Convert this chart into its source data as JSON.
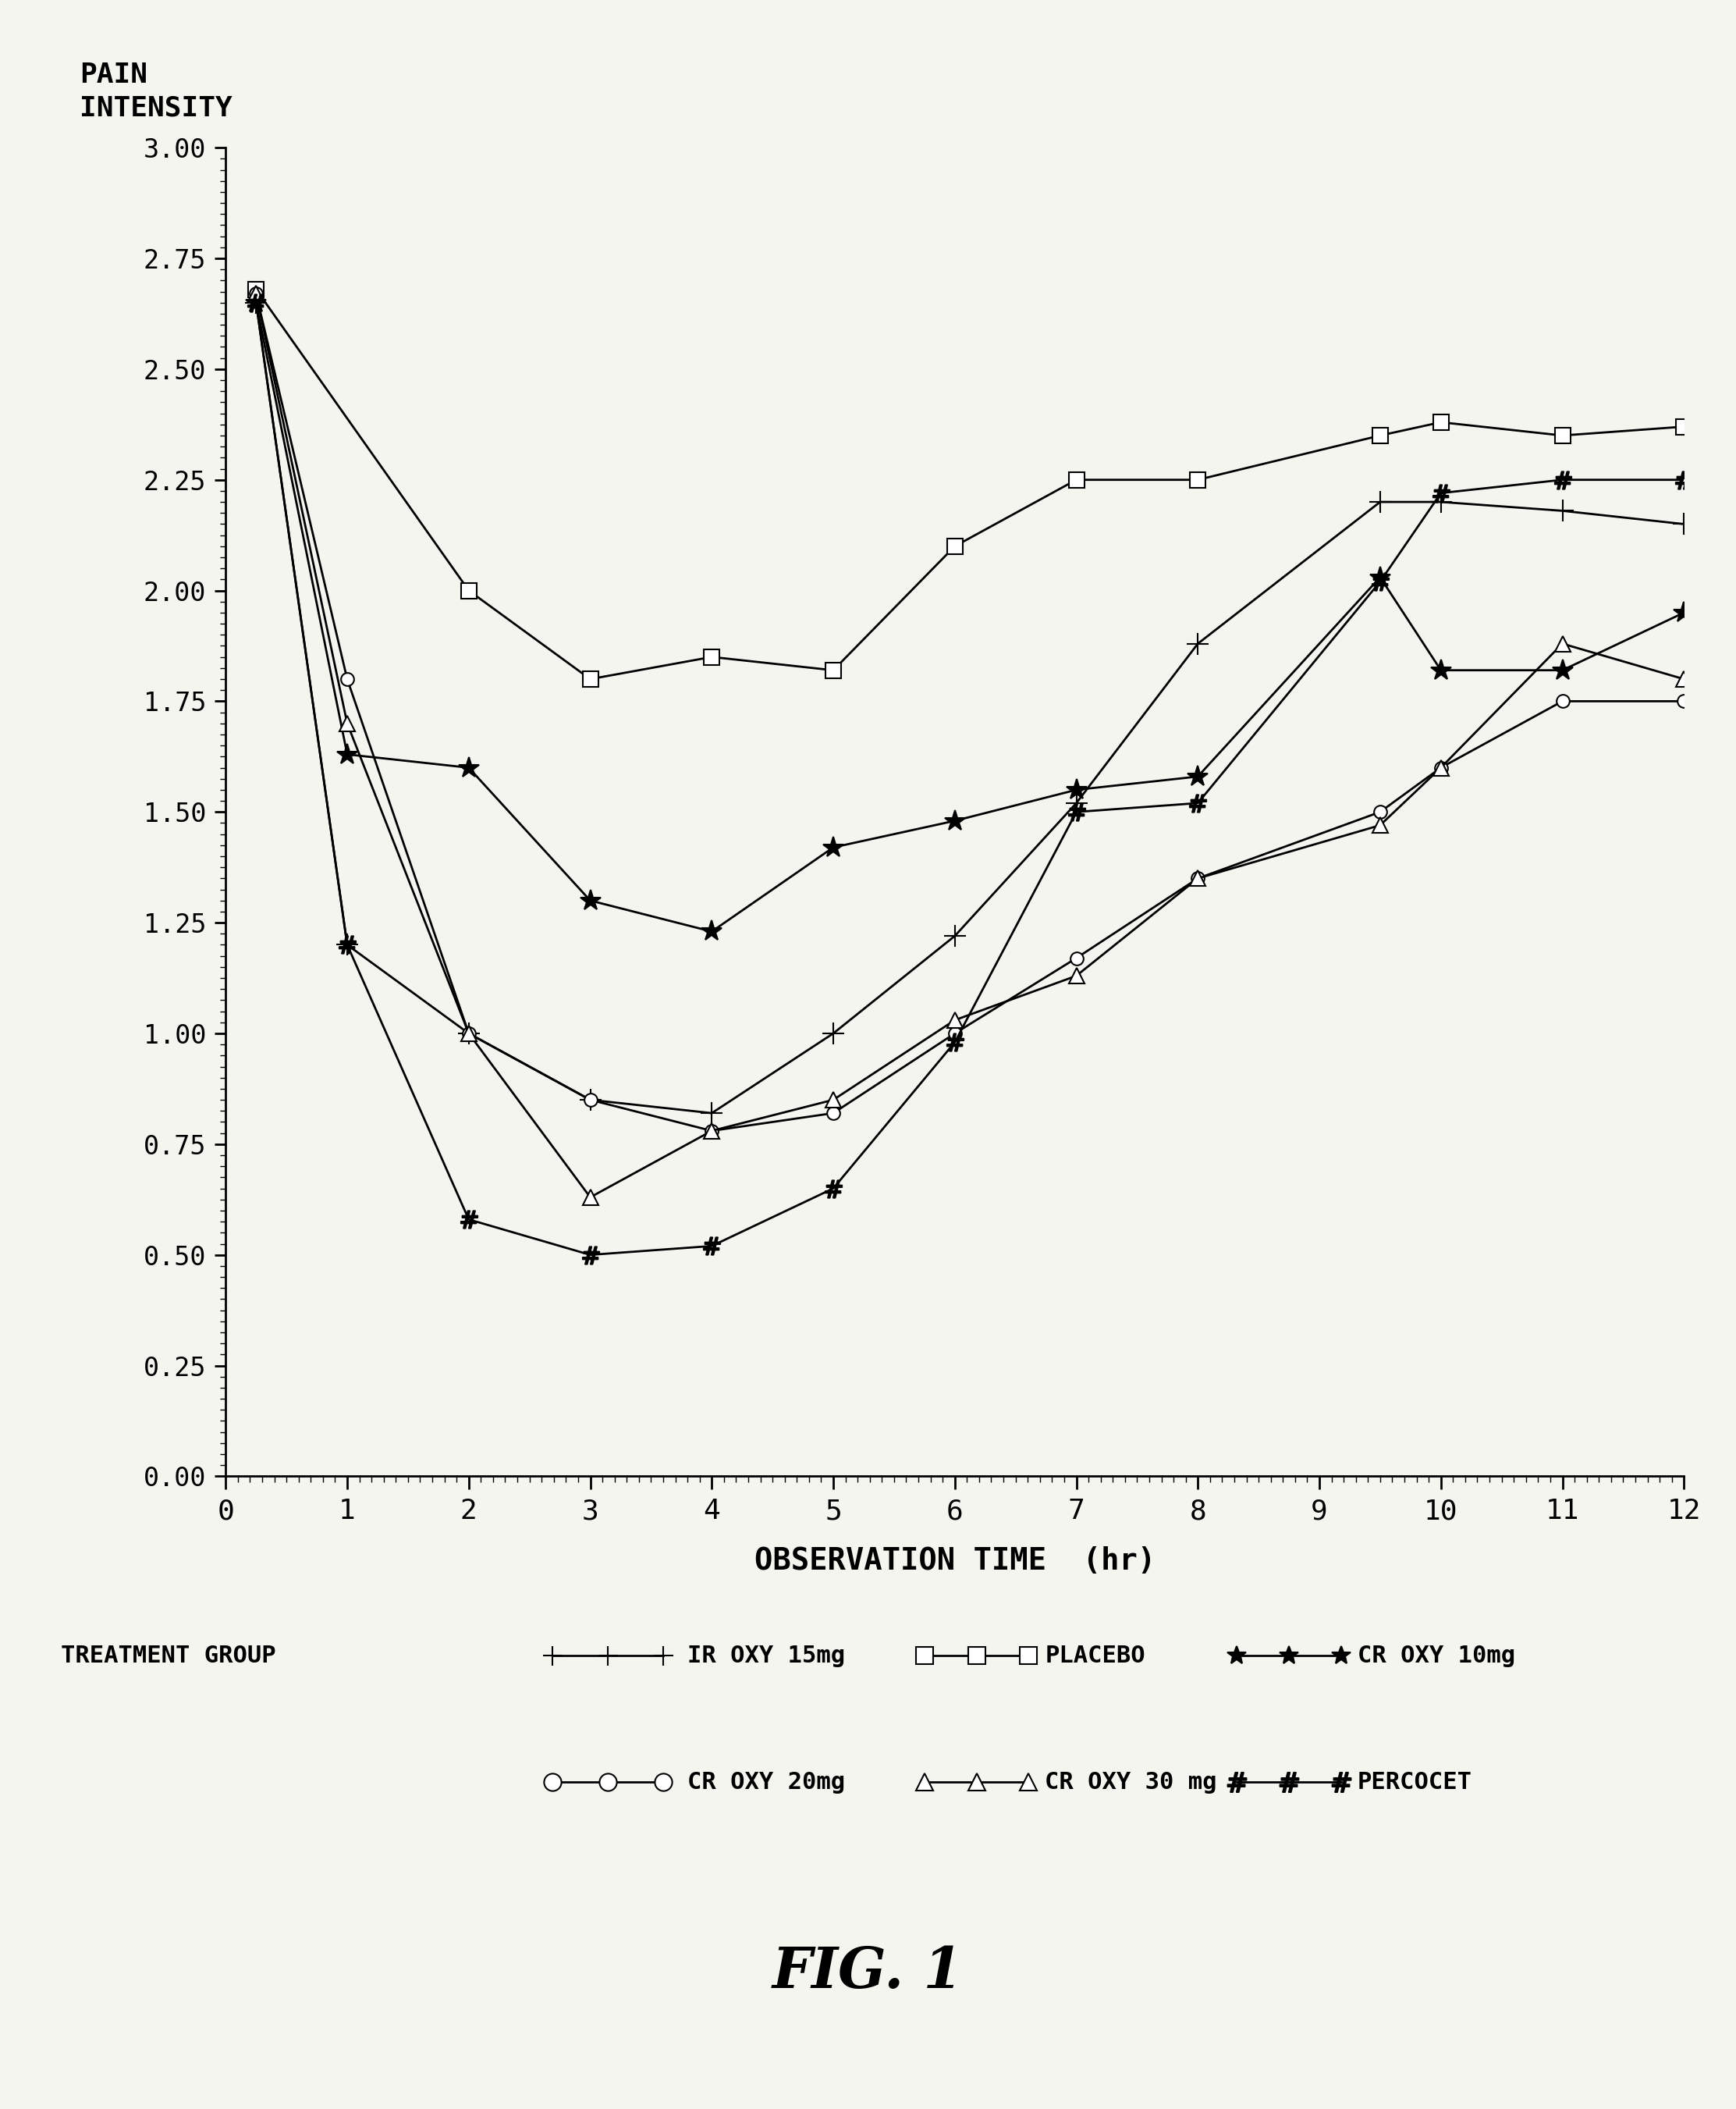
{
  "ylabel": "PAIN\nINTENSITY",
  "xlabel": "OBSERVATION TIME  (hr)",
  "fig_title": "FIG. 1",
  "legend_label": "TREATMENT GROUP",
  "ylim": [
    0.0,
    3.0
  ],
  "xlim": [
    0,
    12
  ],
  "yticks": [
    0.0,
    0.25,
    0.5,
    0.75,
    1.0,
    1.25,
    1.5,
    1.75,
    2.0,
    2.25,
    2.5,
    2.75,
    3.0
  ],
  "xticks": [
    0,
    1,
    2,
    3,
    4,
    5,
    6,
    7,
    8,
    9,
    10,
    11,
    12
  ],
  "series": [
    {
      "name": "IR OXY 15mg",
      "x": [
        0.25,
        1,
        2,
        3,
        4,
        5,
        6,
        7,
        8,
        9.5,
        10,
        11,
        12
      ],
      "y": [
        2.65,
        1.2,
        1.0,
        0.85,
        0.82,
        1.0,
        1.22,
        1.52,
        1.88,
        2.2,
        2.2,
        2.18,
        2.15
      ],
      "marker": "+",
      "mfc": "black",
      "ms": 20,
      "lw": 2.0
    },
    {
      "name": "PLACEBO",
      "x": [
        0.25,
        2,
        3,
        4,
        5,
        6,
        7,
        8,
        9.5,
        10,
        11,
        12
      ],
      "y": [
        2.68,
        2.0,
        1.8,
        1.85,
        1.82,
        2.1,
        2.25,
        2.25,
        2.35,
        2.38,
        2.35,
        2.37
      ],
      "marker": "s",
      "mfc": "white",
      "ms": 14,
      "lw": 2.0
    },
    {
      "name": "CR OXY 10mg",
      "x": [
        0.25,
        1,
        2,
        3,
        4,
        5,
        6,
        7,
        8,
        9.5,
        10,
        11,
        12
      ],
      "y": [
        2.65,
        1.63,
        1.6,
        1.3,
        1.23,
        1.42,
        1.48,
        1.55,
        1.58,
        2.03,
        1.82,
        1.82,
        1.95
      ],
      "marker": "*",
      "mfc": "black",
      "ms": 20,
      "lw": 2.0
    },
    {
      "name": "CR OXY 20mg",
      "x": [
        0.25,
        1,
        2,
        3,
        4,
        5,
        6,
        7,
        8,
        9.5,
        10,
        11,
        12
      ],
      "y": [
        2.67,
        1.8,
        1.0,
        0.85,
        0.78,
        0.82,
        1.0,
        1.17,
        1.35,
        1.5,
        1.6,
        1.75,
        1.75
      ],
      "marker": "o",
      "mfc": "white",
      "ms": 12,
      "lw": 2.0
    },
    {
      "name": "CR OXY 30mg",
      "x": [
        0.25,
        1,
        2,
        3,
        4,
        5,
        6,
        7,
        8,
        9.5,
        10,
        11,
        12
      ],
      "y": [
        2.67,
        1.7,
        1.0,
        0.63,
        0.78,
        0.85,
        1.03,
        1.13,
        1.35,
        1.47,
        1.6,
        1.88,
        1.8
      ],
      "marker": "^",
      "mfc": "white",
      "ms": 14,
      "lw": 2.0
    },
    {
      "name": "PERCOCET",
      "x": [
        0.25,
        1,
        2,
        3,
        4,
        5,
        6,
        7,
        8,
        9.5,
        10,
        11,
        12
      ],
      "y": [
        2.65,
        1.2,
        0.58,
        0.5,
        0.52,
        0.65,
        0.98,
        1.5,
        1.52,
        2.02,
        2.22,
        2.25,
        2.25
      ],
      "marker": "$\\#$",
      "mfc": "black",
      "ms": 16,
      "lw": 2.0
    }
  ],
  "bg_color": "#f5f5f0",
  "text_color": "#000000"
}
